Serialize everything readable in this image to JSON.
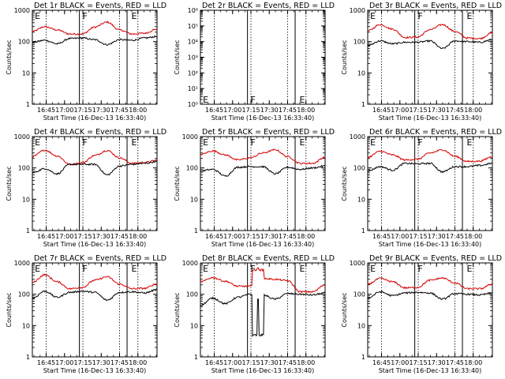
{
  "figure_title": "Det 1r BLACK = Events, RED = LLD",
  "chart_data": {
    "type": "line",
    "layout": "3x3 grid of panels",
    "x_axis": {
      "label": "Start Time (16-Dec-13 16:33:40)",
      "range_minutes": [
        0,
        102
      ],
      "tick_labels": [
        "16:45",
        "17:00",
        "17:15",
        "17:30",
        "17:45",
        "18:00"
      ],
      "tick_minutes": [
        11.33,
        26.33,
        41.33,
        56.33,
        71.33,
        86.33
      ]
    },
    "y_axis": {
      "label": "Counts/sec",
      "scale": "log",
      "range": [
        1,
        1000
      ],
      "tick_labels": [
        "1",
        "10",
        "100",
        "1000"
      ],
      "tick_values": [
        1,
        10,
        100,
        1000
      ]
    },
    "empty_y_axis": {
      "scale": "log",
      "range": [
        1,
        1000000
      ],
      "tick_labels": [
        "10⁰",
        "10¹",
        "10²",
        "10³",
        "10⁴",
        "10⁵",
        "10⁶"
      ],
      "tick_values": [
        1,
        10,
        100,
        1000,
        10000,
        100000,
        1000000
      ]
    },
    "legend": "BLACK = Events, RED = LLD",
    "series_colors": {
      "Events": "#000000",
      "LLD": "#d40000"
    },
    "region_boundaries_minutes": [
      38.5,
      77.5
    ],
    "region_labels": [
      {
        "text": "E",
        "at_minutes": 2
      },
      {
        "text": "F",
        "at_minutes": 41
      },
      {
        "text": "E",
        "at_minutes": 81
      }
    ],
    "dotted_lines_minutes": [
      11.33,
      41.33,
      71.33,
      86.33
    ],
    "panels": [
      {
        "title": "Det 1r BLACK = Events, RED = LLD",
        "events": [
          95,
          110,
          85,
          125,
          130,
          115,
          80,
          115,
          110,
          130,
          145
        ],
        "lld": [
          210,
          300,
          235,
          175,
          175,
          290,
          420,
          235,
          175,
          185,
          250
        ]
      },
      {
        "title": "Det 2r BLACK = Events, RED = LLD",
        "empty": true
      },
      {
        "title": "Det 3r BLACK = Events, RED = LLD",
        "events": [
          75,
          105,
          85,
          95,
          95,
          105,
          60,
          105,
          100,
          95,
          115
        ],
        "lld": [
          220,
          350,
          250,
          135,
          140,
          240,
          350,
          210,
          130,
          125,
          190
        ]
      },
      {
        "title": "Det 4r BLACK = Events, RED = LLD",
        "events": [
          70,
          95,
          65,
          130,
          130,
          130,
          60,
          115,
          130,
          140,
          160
        ],
        "lld": [
          230,
          370,
          240,
          130,
          145,
          250,
          360,
          210,
          140,
          150,
          175
        ]
      },
      {
        "title": "Det 5r BLACK = Events, RED = LLD",
        "events": [
          80,
          90,
          55,
          105,
          110,
          110,
          65,
          105,
          90,
          100,
          115
        ],
        "lld": [
          270,
          350,
          260,
          180,
          210,
          300,
          380,
          230,
          140,
          140,
          220
        ]
      },
      {
        "title": "Det 6r BLACK = Events, RED = LLD",
        "events": [
          80,
          110,
          85,
          140,
          135,
          140,
          75,
          110,
          110,
          120,
          140
        ],
        "lld": [
          220,
          340,
          260,
          180,
          190,
          300,
          380,
          235,
          160,
          165,
          230
        ]
      },
      {
        "title": "Det 7r BLACK = Events, RED = LLD",
        "events": [
          75,
          125,
          80,
          115,
          125,
          115,
          65,
          115,
          120,
          110,
          140
        ],
        "lld": [
          240,
          420,
          250,
          150,
          165,
          280,
          360,
          210,
          150,
          155,
          215
        ]
      },
      {
        "title": "Det 8r BLACK = Events, RED = LLD",
        "events": [
          45,
          75,
          50,
          80,
          100,
          95,
          70,
          105,
          100,
          95,
          110
        ],
        "lld": [
          250,
          340,
          260,
          180,
          180,
          320,
          300,
          270,
          120,
          120,
          200
        ],
        "spike_lld": [
          600,
          700
        ],
        "spike_events": [
          5,
          70
        ]
      },
      {
        "title": "Det 9r BLACK = Events, RED = LLD",
        "events": [
          75,
          120,
          90,
          110,
          115,
          110,
          70,
          105,
          100,
          95,
          110
        ],
        "lld": [
          210,
          320,
          250,
          160,
          165,
          280,
          330,
          230,
          150,
          150,
          210
        ]
      }
    ]
  }
}
